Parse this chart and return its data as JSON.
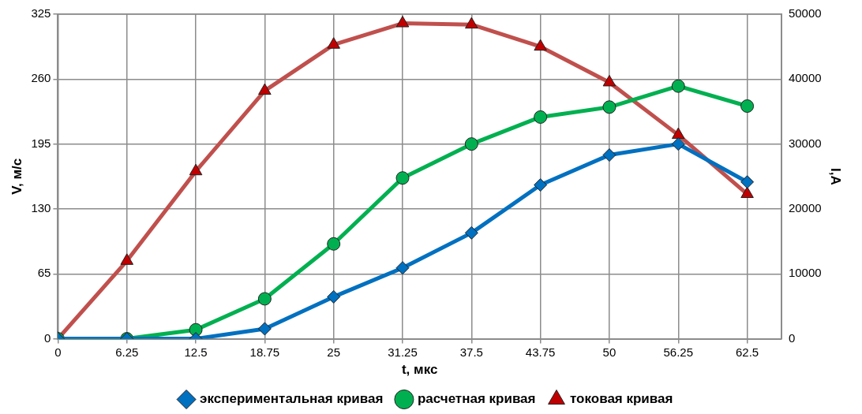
{
  "chart_data": {
    "type": "line",
    "xlabel": "t, мкс",
    "ylabel": "V, м/с",
    "y2label": "I,A",
    "x": [
      0,
      6.25,
      12.5,
      18.75,
      25,
      31.25,
      37.5,
      43.75,
      50,
      56.25,
      62.5
    ],
    "xlim": [
      0,
      65.6
    ],
    "xticks": [
      0,
      6.25,
      12.5,
      18.75,
      25,
      31.25,
      37.5,
      43.75,
      50,
      56.25,
      62.5
    ],
    "ylim": [
      0,
      325
    ],
    "yticks": [
      0,
      65,
      130,
      195,
      260,
      325
    ],
    "y2lim": [
      0,
      50000
    ],
    "y2ticks": [
      0,
      10000,
      20000,
      30000,
      40000,
      50000
    ],
    "grid": true,
    "legend": "bottom",
    "line_style": "solid",
    "series": [
      {
        "name": "экспериментальная кривая",
        "color": "#0070c0",
        "marker": "diamond",
        "values": [
          0,
          0,
          0,
          10,
          42,
          71,
          106,
          154,
          184,
          195,
          157
        ]
      },
      {
        "name": "расчетная кривая",
        "color": "#00b050",
        "marker": "circle",
        "values": [
          0,
          0,
          9,
          40,
          95,
          161,
          195,
          222,
          232,
          253,
          233
        ]
      },
      {
        "name": "токовая кривая",
        "color": "#c0504d",
        "marker": "triangle",
        "axis": "y2",
        "values": [
          0,
          12000,
          25800,
          38200,
          45300,
          48600,
          48400,
          45000,
          39500,
          31400,
          22300
        ]
      }
    ]
  }
}
